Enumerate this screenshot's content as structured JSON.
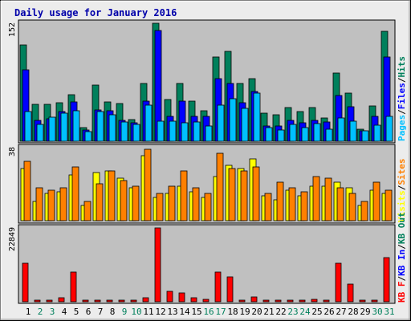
{
  "chart_data": {
    "type": "bar",
    "title": "Daily usage for January 2016",
    "days": [
      "1",
      "2",
      "3",
      "4",
      "5",
      "6",
      "7",
      "8",
      "9",
      "10",
      "11",
      "12",
      "13",
      "14",
      "15",
      "16",
      "17",
      "18",
      "19",
      "20",
      "21",
      "22",
      "23",
      "24",
      "25",
      "26",
      "27",
      "28",
      "29",
      "30",
      "31"
    ],
    "weekend_days": [
      "2",
      "3",
      "9",
      "10",
      "16",
      "17",
      "23",
      "24",
      "30",
      "31"
    ],
    "colors": {
      "hits": "#00805c",
      "files": "#0000ff",
      "pages": "#00c0ff",
      "visits": "#ffff00",
      "sites": "#ff8000",
      "kbin": "#0000ff",
      "kbout": "#00805c",
      "kbf": "#ff0000",
      "weekday_label": "#000000",
      "weekend_label": "#00805c",
      "panel_bg": "#c0c0c0",
      "frame": "#ececec"
    },
    "panels": [
      {
        "ymax_label": "152",
        "ymax": 152,
        "legend": [
          {
            "text": "Pages",
            "color": "#00c0ff"
          },
          {
            "text": "/",
            "color": "#000000"
          },
          {
            "text": "Files",
            "color": "#0000ff"
          },
          {
            "text": "/",
            "color": "#000000"
          },
          {
            "text": "Hits",
            "color": "#00805c"
          }
        ],
        "series": [
          {
            "name": "Hits",
            "color": "#00805c",
            "values": [
              124,
              48,
              48,
              50,
              60,
              18,
              72,
              51,
              49,
              28,
              74,
              152,
              54,
              74,
              52,
              39,
              109,
              116,
              74,
              81,
              36,
              34,
              43,
              38,
              43,
              30,
              88,
              62,
              15,
              46,
              142
            ]
          },
          {
            "name": "Files",
            "color": "#0000ff",
            "values": [
              92,
              27,
              29,
              38,
              51,
              14,
              40,
              39,
              27,
              24,
              52,
              143,
              32,
              52,
              32,
              32,
              81,
              74,
              50,
              64,
              20,
              20,
              27,
              24,
              27,
              25,
              59,
              44,
              13,
              32,
              109
            ]
          },
          {
            "name": "Pages",
            "color": "#00c0ff",
            "values": [
              38,
              22,
              31,
              36,
              39,
              12,
              38,
              34,
              25,
              22,
              47,
              26,
              26,
              24,
              25,
              20,
              47,
              55,
              42,
              62,
              18,
              14,
              22,
              18,
              23,
              16,
              30,
              26,
              13,
              21,
              32
            ]
          }
        ]
      },
      {
        "ymax_label": "38",
        "ymax": 38,
        "legend": [
          {
            "text": "Visits",
            "color": "#ffff00"
          },
          {
            "text": "/",
            "color": "#000000"
          },
          {
            "text": "Sites",
            "color": "#ff8000"
          }
        ],
        "series": [
          {
            "name": "Visits",
            "color": "#ffff00",
            "values": [
              27,
              10,
              14,
              15,
              24,
              8,
              25,
              26,
              22,
              17,
              34,
              12,
              14,
              18,
              15,
              12,
              23,
              29,
              27,
              32,
              13,
              11,
              16,
              13,
              18,
              18,
              20,
              17,
              8,
              16,
              14
            ]
          },
          {
            "name": "Sites",
            "color": "#ff8000",
            "values": [
              31,
              17,
              16,
              17,
              28,
              10,
              19,
              26,
              21,
              18,
              37,
              14,
              18,
              26,
              17,
              14,
              35,
              27,
              26,
              28,
              14,
              20,
              17,
              15,
              23,
              22,
              17,
              14,
              10,
              20,
              16
            ]
          }
        ]
      },
      {
        "ymax_label": "22849",
        "ymax": 22849,
        "legend": [
          {
            "text": "KB F",
            "color": "#ff0000"
          },
          {
            "text": "/",
            "color": "#000000"
          },
          {
            "text": "KB In",
            "color": "#0000ff"
          },
          {
            "text": "/",
            "color": "#000000"
          },
          {
            "text": "KB Out",
            "color": "#00805c"
          }
        ],
        "series": [
          {
            "name": "KB F",
            "color": "#ff0000",
            "values": [
              11900,
              450,
              420,
              1200,
              9300,
              240,
              400,
              430,
              450,
              460,
              1200,
              22849,
              3300,
              2700,
              1200,
              820,
              9300,
              7600,
              470,
              1400,
              400,
              480,
              520,
              450,
              650,
              370,
              12000,
              5500,
              230,
              420,
              13600
            ]
          }
        ]
      }
    ]
  }
}
